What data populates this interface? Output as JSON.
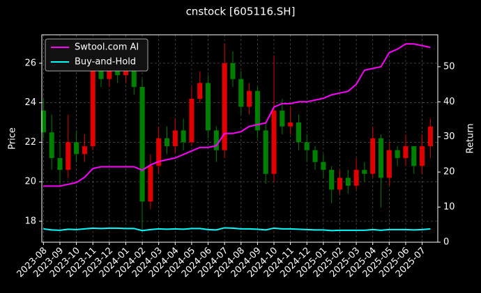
{
  "chart_data": {
    "type": "candlestick",
    "title": "cnstock [605116.SH]",
    "ylabel": "Price",
    "y2label": "Return",
    "x": [
      0,
      0.5,
      1,
      1.5,
      2,
      2.5,
      3,
      3.5,
      4,
      4.5,
      5,
      5.5,
      6,
      6.5,
      7,
      7.5,
      8,
      8.5,
      9,
      9.5,
      10,
      10.5,
      11,
      11.5,
      12,
      12.5,
      13,
      13.5,
      14,
      14.5,
      15,
      15.5,
      16,
      16.5,
      17,
      17.5,
      18,
      18.5,
      19,
      19.5,
      20,
      20.5,
      21,
      21.5,
      22,
      22.5,
      23,
      23.5
    ],
    "open": [
      23.6,
      22.5,
      21.2,
      20.6,
      22.0,
      21.4,
      21.8,
      25.6,
      25.2,
      25.8,
      25.4,
      25.6,
      24.8,
      19.0,
      20.8,
      22.2,
      21.8,
      22.6,
      22.0,
      24.2,
      25.0,
      22.6,
      21.6,
      26.0,
      25.2,
      23.8,
      24.6,
      22.6,
      20.4,
      23.6,
      22.8,
      23.0,
      22.0,
      21.6,
      21.0,
      20.6,
      19.6,
      20.2,
      19.8,
      20.6,
      20.4,
      22.2,
      20.2,
      21.6,
      21.2,
      21.8,
      20.8,
      21.8
    ],
    "high": [
      24.2,
      23.4,
      22.0,
      23.4,
      22.6,
      22.4,
      26.4,
      26.0,
      26.2,
      26.0,
      26.0,
      25.8,
      25.2,
      21.4,
      22.8,
      22.8,
      23.2,
      23.2,
      24.8,
      25.6,
      25.4,
      22.8,
      27.0,
      26.6,
      25.6,
      25.0,
      24.8,
      23.0,
      26.4,
      24.2,
      23.8,
      23.4,
      22.4,
      21.8,
      21.4,
      20.8,
      20.6,
      20.6,
      21.2,
      21.0,
      22.8,
      22.4,
      22.0,
      21.8,
      22.4,
      21.8,
      22.4,
      23.2
    ],
    "low": [
      22.2,
      20.6,
      19.8,
      20.2,
      21.0,
      21.0,
      21.6,
      24.8,
      24.8,
      25.0,
      25.0,
      24.4,
      17.5,
      18.6,
      20.4,
      21.4,
      21.4,
      21.6,
      21.8,
      24.0,
      22.2,
      21.0,
      21.2,
      24.8,
      23.4,
      23.4,
      22.2,
      19.9,
      20.0,
      22.4,
      22.4,
      21.6,
      21.0,
      20.6,
      20.2,
      18.9,
      19.4,
      19.4,
      19.6,
      20.0,
      20.2,
      18.7,
      19.8,
      20.8,
      20.8,
      20.4,
      20.4,
      21.2
    ],
    "close": [
      22.5,
      21.2,
      20.6,
      22.0,
      21.4,
      21.8,
      25.6,
      25.2,
      25.8,
      25.4,
      25.6,
      24.8,
      19.0,
      20.8,
      22.2,
      21.8,
      22.6,
      22.0,
      24.2,
      25.0,
      22.6,
      21.6,
      26.0,
      25.2,
      23.8,
      24.6,
      22.6,
      20.4,
      23.6,
      22.8,
      23.0,
      22.0,
      21.6,
      21.0,
      20.6,
      19.6,
      20.2,
      19.8,
      20.6,
      20.4,
      22.2,
      20.2,
      21.6,
      21.2,
      21.8,
      20.8,
      21.8,
      22.8
    ],
    "up_color": "#e00000",
    "down_color": "#008000",
    "series": [
      {
        "name": "Swtool.com AI",
        "color": "#ff00ff",
        "axis": "y2",
        "values": [
          16,
          16,
          16,
          16.5,
          17,
          18.5,
          21,
          21.5,
          21.5,
          21.5,
          21.5,
          21.5,
          20.5,
          22,
          23,
          23.5,
          24,
          25,
          26,
          27,
          27,
          27.5,
          31,
          31,
          31.5,
          33,
          33.5,
          34,
          38.5,
          39.5,
          39.5,
          40,
          40,
          40.5,
          41,
          42,
          42.5,
          43,
          45,
          49,
          49.5,
          50,
          54,
          55,
          56.5,
          56.5,
          56,
          55.5
        ]
      },
      {
        "name": "Buy-and-Hold",
        "color": "#00ffff",
        "axis": "y2",
        "values": [
          3.8,
          3.5,
          3.4,
          3.7,
          3.6,
          3.8,
          4.0,
          3.9,
          4.0,
          4.0,
          3.9,
          3.9,
          3.3,
          3.6,
          3.8,
          3.7,
          3.8,
          3.7,
          3.9,
          3.9,
          3.6,
          3.5,
          4.1,
          4.0,
          3.8,
          3.8,
          3.7,
          3.5,
          4.0,
          3.8,
          3.8,
          3.7,
          3.6,
          3.5,
          3.5,
          3.3,
          3.4,
          3.4,
          3.4,
          3.4,
          3.6,
          3.4,
          3.6,
          3.6,
          3.6,
          3.5,
          3.6,
          3.8
        ]
      }
    ],
    "xlim": [
      -0.1,
      23.95
    ],
    "xticks": [
      {
        "value": 0,
        "label": "2023-08"
      },
      {
        "value": 1,
        "label": "2023-09"
      },
      {
        "value": 2,
        "label": "2023-10"
      },
      {
        "value": 3,
        "label": "2023-11"
      },
      {
        "value": 4,
        "label": "2023-12"
      },
      {
        "value": 5,
        "label": "2024-01"
      },
      {
        "value": 6,
        "label": "2024-02"
      },
      {
        "value": 7,
        "label": "2024-03"
      },
      {
        "value": 8,
        "label": "2024-04"
      },
      {
        "value": 9,
        "label": "2024-05"
      },
      {
        "value": 10,
        "label": "2024-06"
      },
      {
        "value": 11,
        "label": "2024-07"
      },
      {
        "value": 12,
        "label": "2024-08"
      },
      {
        "value": 13,
        "label": "2024-09"
      },
      {
        "value": 14,
        "label": "2024-10"
      },
      {
        "value": 15,
        "label": "2024-11"
      },
      {
        "value": 16,
        "label": "2024-12"
      },
      {
        "value": 17,
        "label": "2025-01"
      },
      {
        "value": 18,
        "label": "2025-02"
      },
      {
        "value": 19,
        "label": "2025-03"
      },
      {
        "value": 20,
        "label": "2025-04"
      },
      {
        "value": 21,
        "label": "2025-05"
      },
      {
        "value": 22,
        "label": "2025-06"
      },
      {
        "value": 23,
        "label": "2025-07"
      }
    ],
    "ylim": [
      16.94,
      27.44
    ],
    "yticks": [
      18,
      20,
      22,
      24,
      26
    ],
    "y2lim": [
      0,
      59.1
    ],
    "y2ticks": [
      0,
      10,
      20,
      30,
      40,
      50
    ],
    "grid": true,
    "legend": "upper left"
  }
}
